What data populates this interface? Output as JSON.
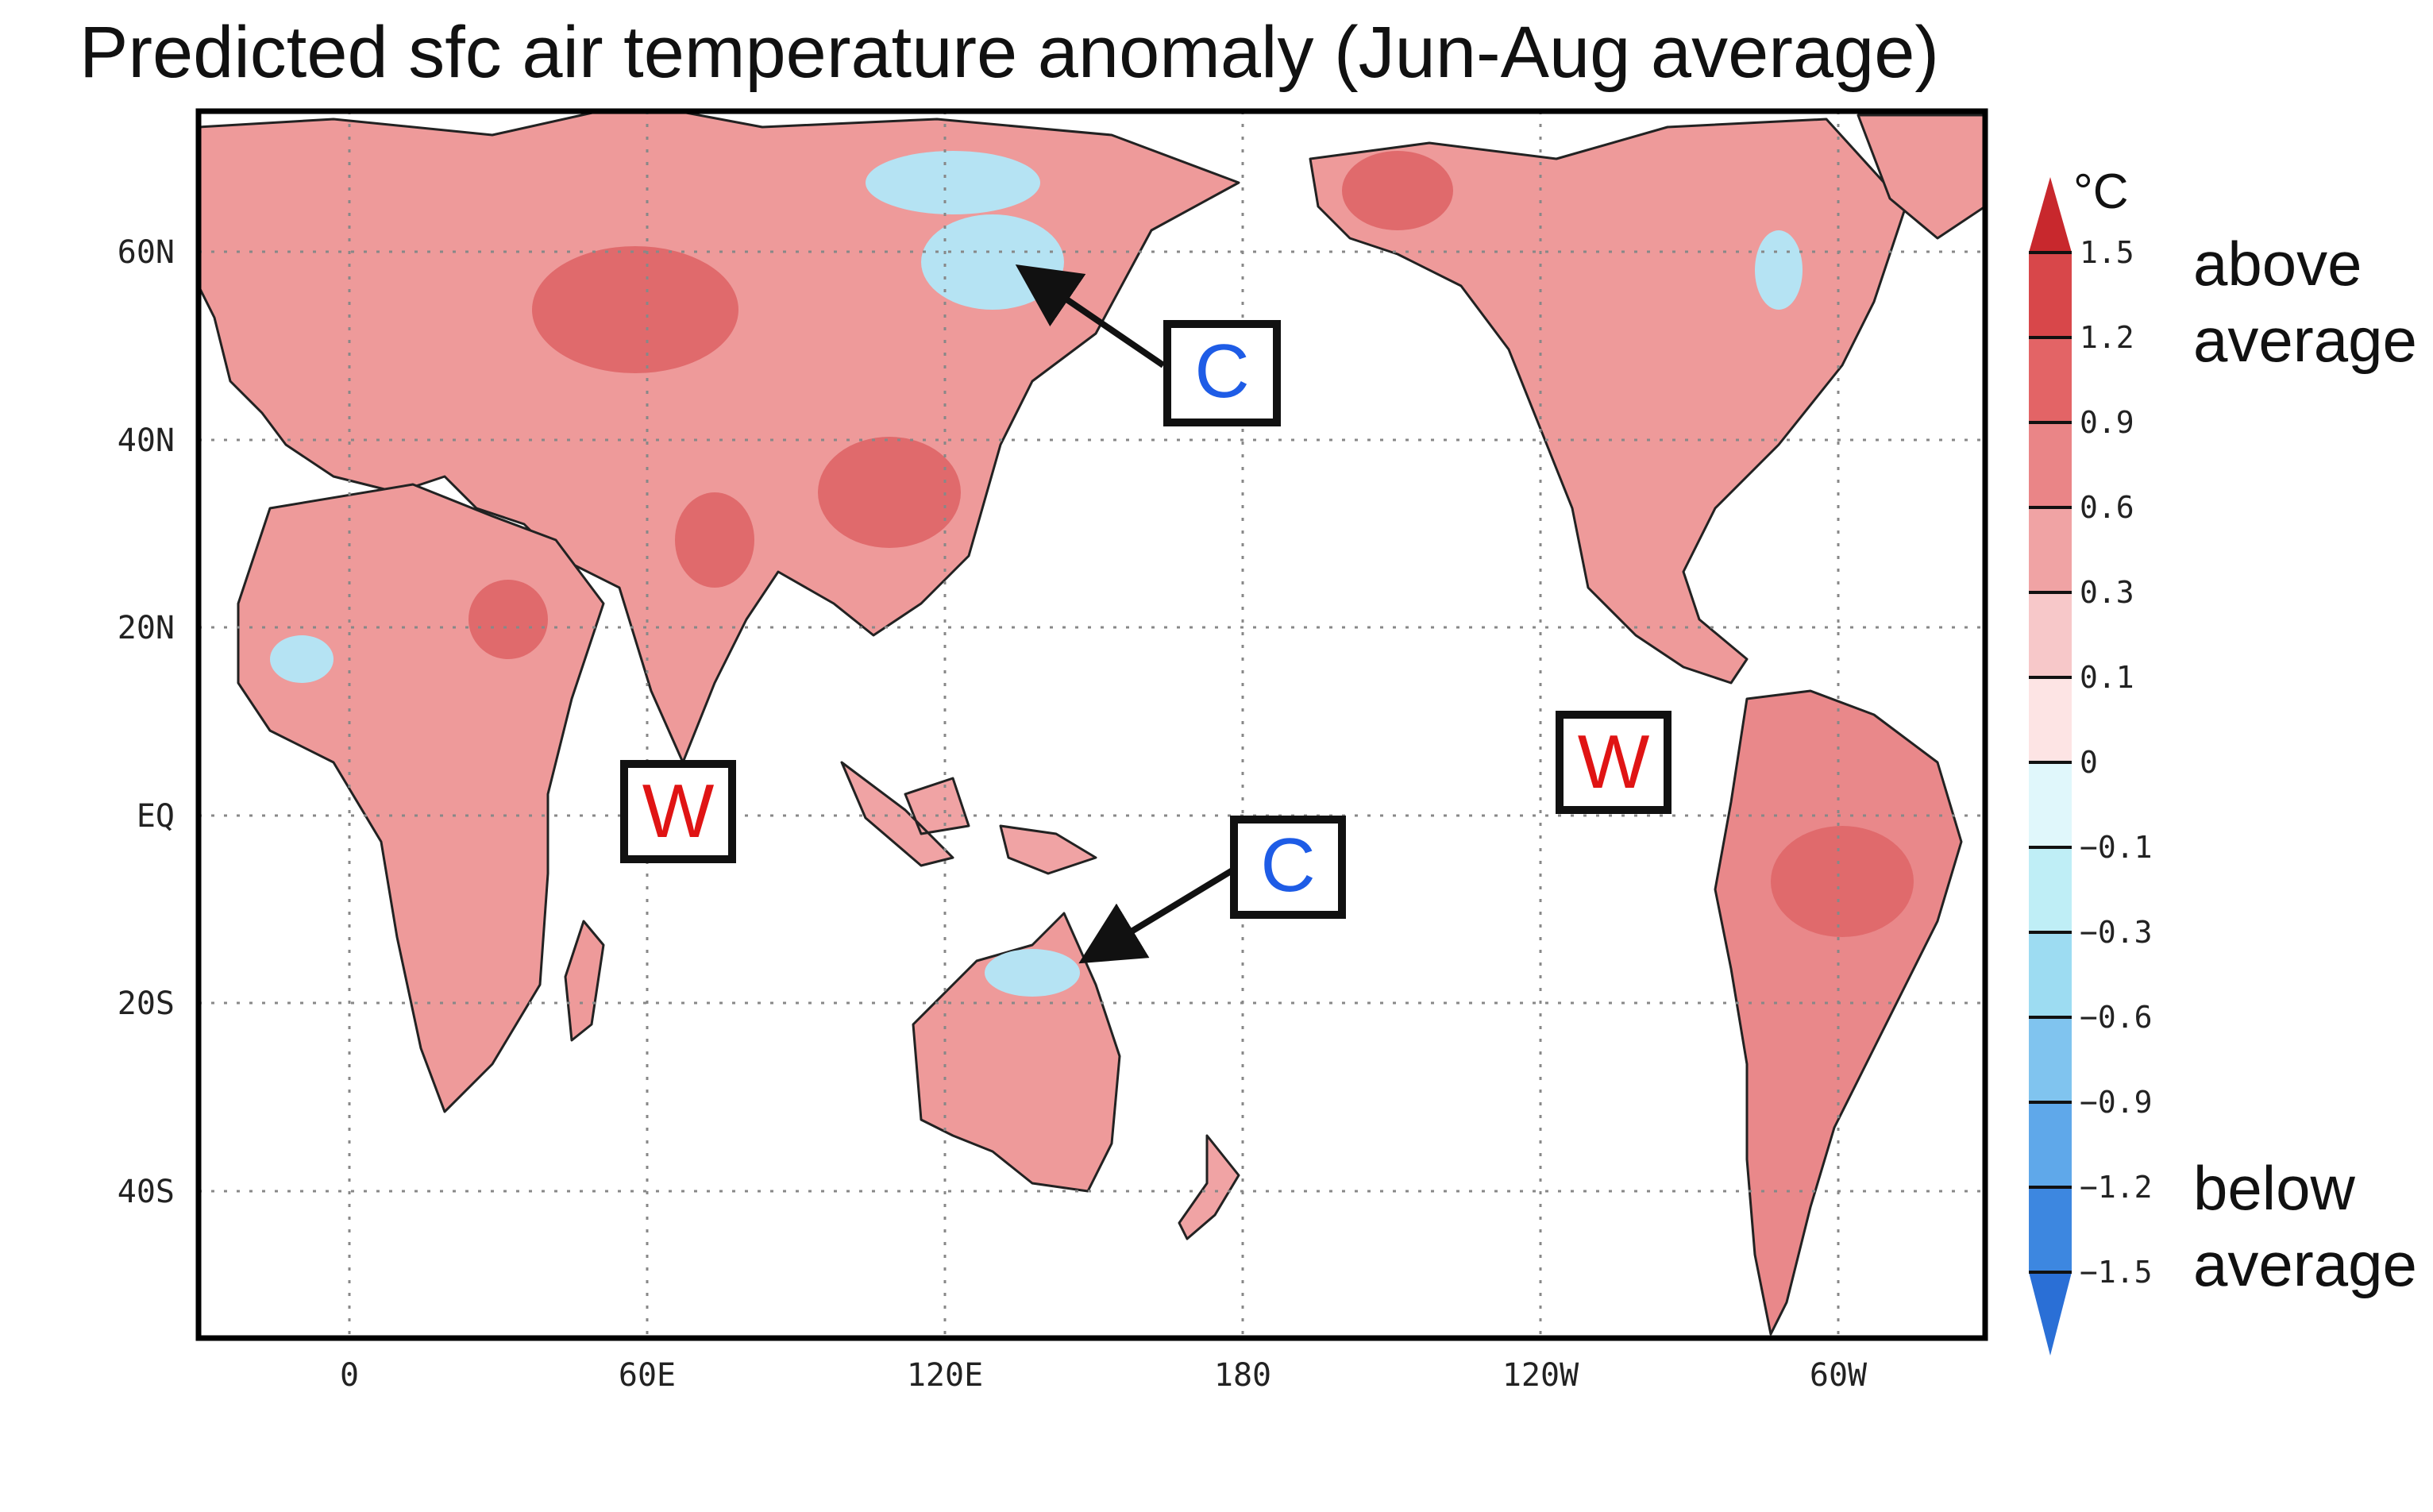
{
  "title": "Predicted sfc air temperature anomaly (Jun-Aug average)",
  "x_ticks": [
    "0",
    "60E",
    "120E",
    "180",
    "120W",
    "60W"
  ],
  "y_ticks": [
    "60N",
    "40N",
    "20N",
    "EQ",
    "20S",
    "40S"
  ],
  "colorbar": {
    "unit": "°C",
    "labels": [
      "1.5",
      "1.2",
      "0.9",
      "0.6",
      "0.3",
      "0.1",
      "0",
      "−0.1",
      "−0.3",
      "−0.6",
      "−0.9",
      "−1.2",
      "−1.5"
    ],
    "colors": [
      "#c8282d",
      "#d8474a",
      "#e36466",
      "#ea8587",
      "#f0a3a4",
      "#f7c8c9",
      "#fde4e4",
      "#e0f7fb",
      "#bfeef6",
      "#9ddcf2",
      "#80c4ef",
      "#5fa8ea",
      "#3d87e0",
      "#2a6fd6"
    ],
    "above_label": [
      "above",
      "average"
    ],
    "below_label": [
      "below",
      "average"
    ]
  },
  "annotations": [
    {
      "letter": "C",
      "meaning": "cold",
      "color": "#1e5ce6"
    },
    {
      "letter": "C",
      "meaning": "cold",
      "color": "#1e5ce6"
    },
    {
      "letter": "W",
      "meaning": "warm",
      "color": "#e01414"
    },
    {
      "letter": "W",
      "meaning": "warm",
      "color": "#e01414"
    }
  ],
  "map_colors": {
    "warm": "#ee9a9a",
    "warm_strong": "#e06a6c",
    "cool": "#b5e3f3",
    "ocean": "#ffffff"
  }
}
